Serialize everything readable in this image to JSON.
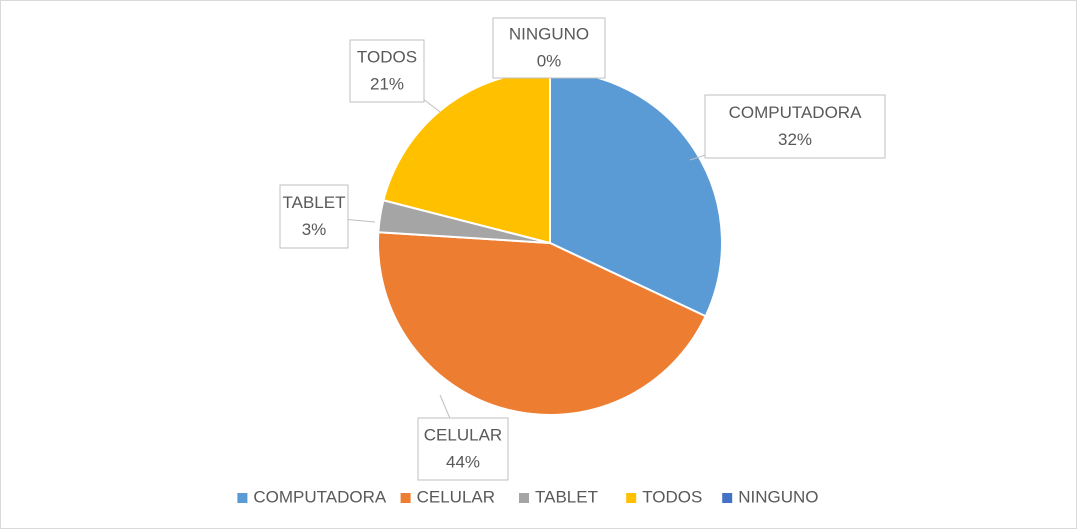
{
  "chart_data": {
    "type": "pie",
    "categories": [
      "COMPUTADORA",
      "CELULAR",
      "TABLET",
      "TODOS",
      "NINGUNO"
    ],
    "values": [
      32,
      44,
      3,
      21,
      0
    ],
    "value_labels": [
      "32%",
      "44%",
      "3%",
      "21%",
      "0%"
    ],
    "colors": [
      "#5b9bd5",
      "#ed7d31",
      "#a5a5a5",
      "#ffc000",
      "#4472c4"
    ],
    "legend": "bottom"
  }
}
